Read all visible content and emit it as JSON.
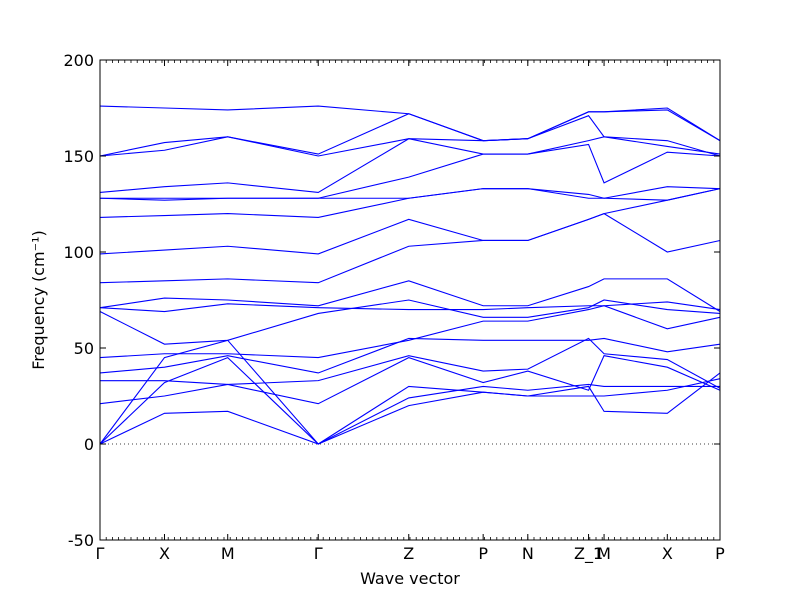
{
  "chart_data": {
    "type": "line",
    "title": "",
    "xlabel": "Wave vector",
    "ylabel": "Frequency (cm⁻¹)",
    "ylim": [
      -50,
      200
    ],
    "yticks": [
      -50,
      0,
      50,
      100,
      150,
      200
    ],
    "xlim": [
      0,
      1
    ],
    "xticks": [
      {
        "label": "Γ",
        "x": 0.0
      },
      {
        "label": "X",
        "x": 0.104
      },
      {
        "label": "M",
        "x": 0.206
      },
      {
        "label": "Γ",
        "x": 0.352
      },
      {
        "label": "Z",
        "x": 0.498
      },
      {
        "label": "P",
        "x": 0.618
      },
      {
        "label": "N",
        "x": 0.69
      },
      {
        "label": "Z_1",
        "x": 0.788
      },
      {
        "label": "M",
        "x": 0.813
      },
      {
        "label": "X",
        "x": 0.915
      },
      {
        "label": "P",
        "x": 1.0
      }
    ],
    "zero_line": 0,
    "line_color": "#0000ff",
    "series": [
      {
        "x": [
          0,
          0.104,
          0.206,
          0.352,
          0.498,
          0.618,
          0.69,
          0.788,
          0.813,
          0.915,
          1.0
        ],
        "values": [
          0,
          16,
          17,
          0,
          20,
          27,
          25,
          30,
          17,
          16,
          37
        ]
      },
      {
        "x": [
          0,
          0.104,
          0.206,
          0.352,
          0.498,
          0.618,
          0.69,
          0.788,
          0.813,
          0.915,
          1.0
        ],
        "values": [
          0,
          32,
          45,
          0,
          30,
          27,
          25,
          25,
          25,
          28,
          34
        ]
      },
      {
        "x": [
          0,
          0.104,
          0.206,
          0.352,
          0.498,
          0.618,
          0.69,
          0.788,
          0.813,
          0.915,
          1.0
        ],
        "values": [
          0,
          45,
          54,
          0,
          24,
          30,
          28,
          31,
          30,
          30,
          30
        ]
      },
      {
        "x": [
          0,
          0.104,
          0.206,
          0.352,
          0.498,
          0.618,
          0.69,
          0.788,
          0.813,
          0.915,
          1.0
        ],
        "values": [
          21,
          25,
          31,
          21,
          45,
          32,
          38,
          28,
          46,
          40,
          28
        ]
      },
      {
        "x": [
          0,
          0.104,
          0.206,
          0.352,
          0.498,
          0.618,
          0.69,
          0.788,
          0.813,
          0.915,
          1.0
        ],
        "values": [
          33,
          33,
          31,
          33,
          46,
          38,
          39,
          55,
          47,
          44,
          29
        ]
      },
      {
        "x": [
          0,
          0.104,
          0.206,
          0.352,
          0.498,
          0.618,
          0.69,
          0.788,
          0.813,
          0.915,
          1.0
        ],
        "values": [
          37,
          40,
          46,
          37,
          55,
          54,
          54,
          54,
          55,
          48,
          52
        ]
      },
      {
        "x": [
          0,
          0.104,
          0.206,
          0.352,
          0.498,
          0.618,
          0.69,
          0.788,
          0.813,
          0.915,
          1.0
        ],
        "values": [
          45,
          47,
          47,
          45,
          54,
          64,
          64,
          70,
          72,
          60,
          66
        ]
      },
      {
        "x": [
          0,
          0.104,
          0.206,
          0.352,
          0.498,
          0.618,
          0.69,
          0.788,
          0.813,
          0.915,
          1.0
        ],
        "values": [
          69,
          52,
          54,
          68,
          75,
          66,
          66,
          71,
          75,
          70,
          68
        ]
      },
      {
        "x": [
          0,
          0.104,
          0.206,
          0.352,
          0.498,
          0.618,
          0.69,
          0.788,
          0.813,
          0.915,
          1.0
        ],
        "values": [
          71,
          69,
          73,
          71,
          70,
          70,
          71,
          72,
          72,
          74,
          70
        ]
      },
      {
        "x": [
          0,
          0.104,
          0.206,
          0.352,
          0.498,
          0.618,
          0.69,
          0.788,
          0.813,
          0.915,
          1.0
        ],
        "values": [
          71,
          76,
          75,
          72,
          85,
          72,
          72,
          82,
          86,
          86,
          69
        ]
      },
      {
        "x": [
          0,
          0.104,
          0.206,
          0.352,
          0.498,
          0.618,
          0.69,
          0.788,
          0.813,
          0.915,
          1.0
        ],
        "values": [
          84,
          85,
          86,
          84,
          103,
          106,
          106,
          117,
          120,
          100,
          106
        ]
      },
      {
        "x": [
          0,
          0.104,
          0.206,
          0.352,
          0.498,
          0.618,
          0.69,
          0.788,
          0.813,
          0.915,
          1.0
        ],
        "values": [
          99,
          101,
          103,
          99,
          117,
          106,
          106,
          117,
          120,
          127,
          133
        ]
      },
      {
        "x": [
          0,
          0.104,
          0.206,
          0.352,
          0.498,
          0.618,
          0.69,
          0.788,
          0.813,
          0.915,
          1.0
        ],
        "values": [
          118,
          119,
          120,
          118,
          128,
          133,
          133,
          128,
          128,
          127,
          133
        ]
      },
      {
        "x": [
          0,
          0.104,
          0.206,
          0.352,
          0.498,
          0.618,
          0.69,
          0.788,
          0.813,
          0.915,
          1.0
        ],
        "values": [
          128,
          127,
          128,
          128,
          128,
          133,
          133,
          130,
          128,
          134,
          133
        ]
      },
      {
        "x": [
          0,
          0.104,
          0.206,
          0.352,
          0.498,
          0.618,
          0.69,
          0.788,
          0.813,
          0.915,
          1.0
        ],
        "values": [
          128,
          128,
          128,
          128,
          139,
          151,
          151,
          156,
          136,
          152,
          150
        ]
      },
      {
        "x": [
          0,
          0.104,
          0.206,
          0.352,
          0.498,
          0.618,
          0.69,
          0.788,
          0.813,
          0.915,
          1.0
        ],
        "values": [
          131,
          134,
          136,
          131,
          159,
          151,
          151,
          158,
          160,
          155,
          151
        ]
      },
      {
        "x": [
          0,
          0.104,
          0.206,
          0.352,
          0.498,
          0.618,
          0.69,
          0.788,
          0.813,
          0.915,
          1.0
        ],
        "values": [
          150,
          153,
          160,
          150,
          159,
          158,
          159,
          171,
          160,
          158,
          150
        ]
      },
      {
        "x": [
          0,
          0.104,
          0.206,
          0.352,
          0.498,
          0.618,
          0.69,
          0.788,
          0.813,
          0.915,
          1.0
        ],
        "values": [
          150,
          157,
          160,
          151,
          172,
          158,
          159,
          173,
          173,
          174,
          158
        ]
      },
      {
        "x": [
          0,
          0.104,
          0.206,
          0.352,
          0.498,
          0.618,
          0.69,
          0.788,
          0.813,
          0.915,
          1.0
        ],
        "values": [
          176,
          175,
          174,
          176,
          172,
          158,
          159,
          173,
          173,
          175,
          158
        ]
      }
    ]
  }
}
